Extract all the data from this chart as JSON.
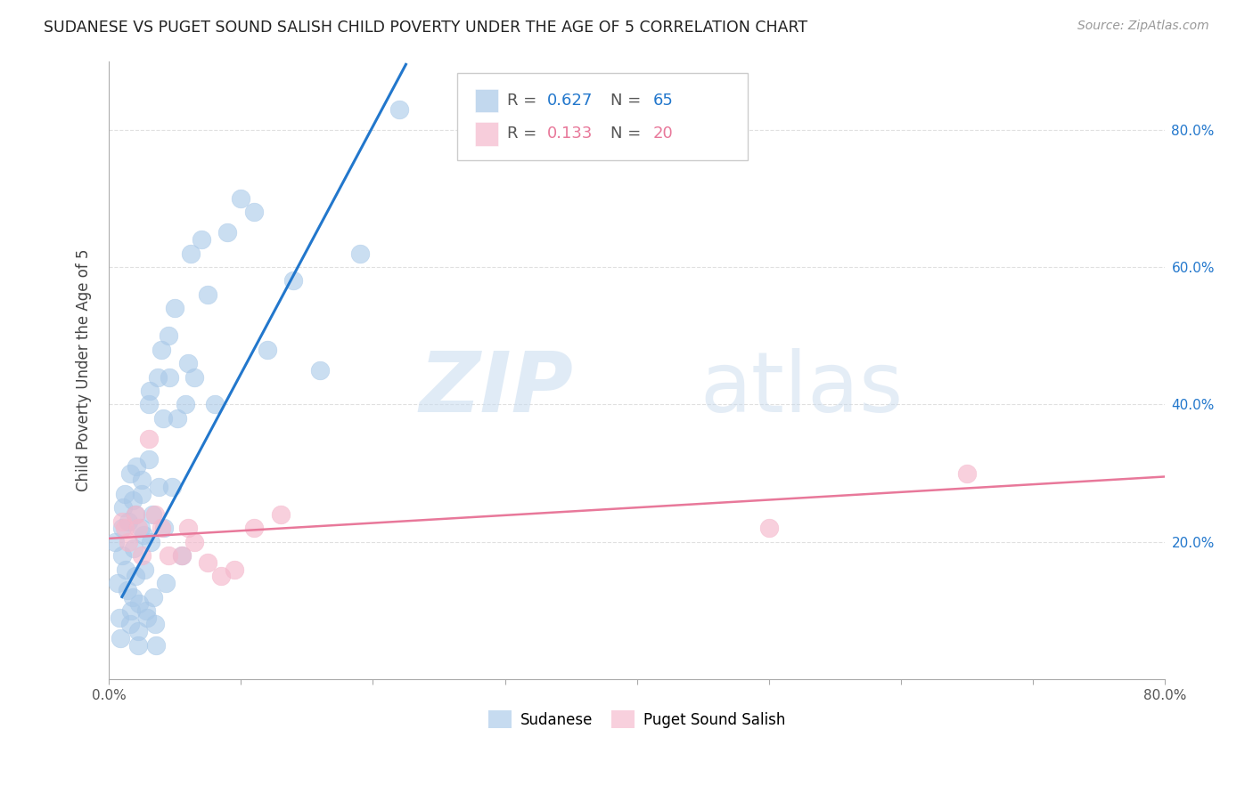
{
  "title": "SUDANESE VS PUGET SOUND SALISH CHILD POVERTY UNDER THE AGE OF 5 CORRELATION CHART",
  "source": "Source: ZipAtlas.com",
  "ylabel": "Child Poverty Under the Age of 5",
  "xlim": [
    0.0,
    0.8
  ],
  "ylim": [
    0.0,
    0.9
  ],
  "blue_R": 0.627,
  "blue_N": 65,
  "pink_R": 0.133,
  "pink_N": 20,
  "blue_color": "#a8c8e8",
  "pink_color": "#f5b8cc",
  "blue_line_color": "#2277cc",
  "pink_line_color": "#e8789a",
  "blue_text_color": "#2277cc",
  "pink_text_color": "#e8789a",
  "grid_color": "#dddddd",
  "background_color": "#ffffff",
  "blue_points_x": [
    0.005,
    0.007,
    0.008,
    0.009,
    0.01,
    0.01,
    0.011,
    0.012,
    0.013,
    0.014,
    0.015,
    0.016,
    0.016,
    0.017,
    0.018,
    0.018,
    0.019,
    0.02,
    0.02,
    0.021,
    0.022,
    0.022,
    0.023,
    0.024,
    0.025,
    0.025,
    0.026,
    0.027,
    0.028,
    0.029,
    0.03,
    0.03,
    0.031,
    0.032,
    0.033,
    0.034,
    0.035,
    0.036,
    0.037,
    0.038,
    0.04,
    0.041,
    0.042,
    0.043,
    0.045,
    0.046,
    0.048,
    0.05,
    0.052,
    0.055,
    0.058,
    0.06,
    0.062,
    0.065,
    0.07,
    0.075,
    0.08,
    0.09,
    0.1,
    0.11,
    0.12,
    0.14,
    0.16,
    0.19,
    0.22
  ],
  "blue_points_y": [
    0.2,
    0.14,
    0.09,
    0.06,
    0.18,
    0.22,
    0.25,
    0.27,
    0.16,
    0.13,
    0.23,
    0.08,
    0.3,
    0.1,
    0.12,
    0.26,
    0.19,
    0.15,
    0.24,
    0.31,
    0.07,
    0.05,
    0.11,
    0.22,
    0.27,
    0.29,
    0.21,
    0.16,
    0.1,
    0.09,
    0.4,
    0.32,
    0.42,
    0.2,
    0.24,
    0.12,
    0.08,
    0.05,
    0.44,
    0.28,
    0.48,
    0.38,
    0.22,
    0.14,
    0.5,
    0.44,
    0.28,
    0.54,
    0.38,
    0.18,
    0.4,
    0.46,
    0.62,
    0.44,
    0.64,
    0.56,
    0.4,
    0.65,
    0.7,
    0.68,
    0.48,
    0.58,
    0.45,
    0.62,
    0.83
  ],
  "pink_points_x": [
    0.01,
    0.012,
    0.015,
    0.02,
    0.022,
    0.025,
    0.03,
    0.035,
    0.04,
    0.045,
    0.055,
    0.06,
    0.065,
    0.075,
    0.085,
    0.095,
    0.11,
    0.13,
    0.5,
    0.65
  ],
  "pink_points_y": [
    0.23,
    0.22,
    0.2,
    0.24,
    0.22,
    0.18,
    0.35,
    0.24,
    0.22,
    0.18,
    0.18,
    0.22,
    0.2,
    0.17,
    0.15,
    0.16,
    0.22,
    0.24,
    0.22,
    0.3
  ],
  "blue_line_x0": 0.01,
  "blue_line_y0": 0.12,
  "blue_line_x1": 0.225,
  "blue_line_y1": 0.895,
  "pink_line_x0": 0.0,
  "pink_line_y0": 0.205,
  "pink_line_x1": 0.8,
  "pink_line_y1": 0.295
}
